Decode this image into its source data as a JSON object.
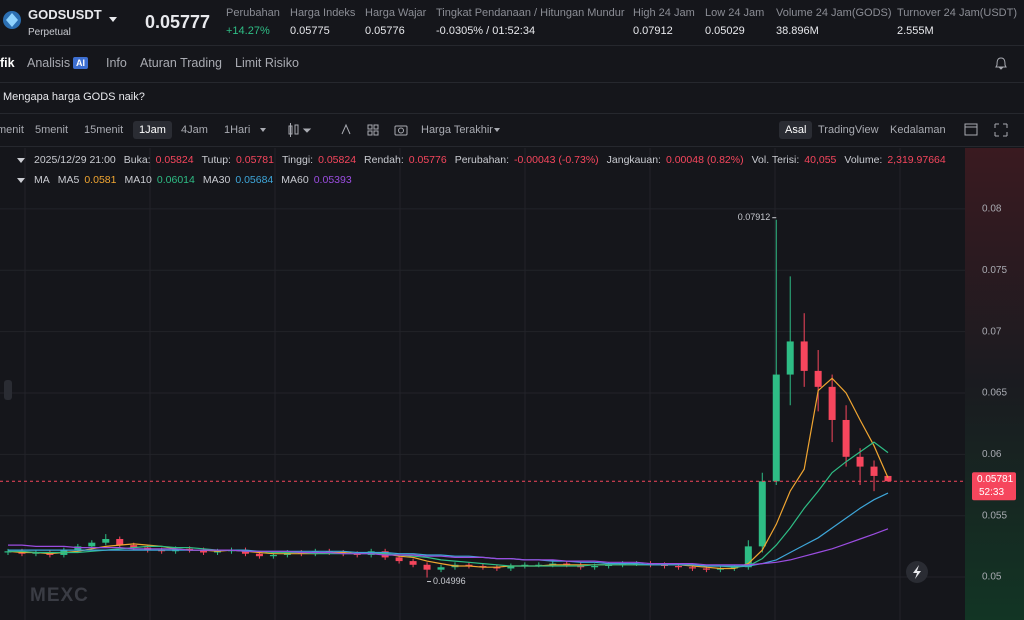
{
  "header": {
    "symbol": "GODSUSDT",
    "contract": "Perpetual",
    "price": "0.05777",
    "stats": [
      {
        "label": "Perubahan",
        "value": "+14.27%"
      },
      {
        "label": "Harga Indeks",
        "value": "0.05775"
      },
      {
        "label": "Harga Wajar",
        "value": "0.05776"
      },
      {
        "label": "Tingkat Pendanaan / Hitungan Mundur",
        "value": "-0.0305% / 01:52:34"
      },
      {
        "label": "High 24 Jam",
        "value": "0.07912"
      },
      {
        "label": "Low 24 Jam",
        "value": "0.05029"
      },
      {
        "label": "Volume 24 Jam(GODS)",
        "value": "38.896M"
      },
      {
        "label": "Turnover 24 Jam(USDT)",
        "value": "2.555M"
      }
    ]
  },
  "tabs": [
    "fik",
    "Analisis",
    "Info",
    "Aturan Trading",
    "Limit Risiko"
  ],
  "ai_badge": "AI",
  "notice": "Mengapa harga GODS naik?",
  "toolbar": {
    "intervals": [
      "menit",
      "5menit",
      "15menit",
      "1Jam",
      "4Jam",
      "1Hari"
    ],
    "price_type": "Harga Terakhir",
    "views": [
      "Asal",
      "TradingView",
      "Kedalaman"
    ]
  },
  "legend": {
    "time": "2025/12/29 21:00",
    "fields": [
      {
        "label": "Buka:",
        "value": "0.05824"
      },
      {
        "label": "Tutup:",
        "value": "0.05781"
      },
      {
        "label": "Tinggi:",
        "value": "0.05824"
      },
      {
        "label": "Rendah:",
        "value": "0.05776"
      },
      {
        "label": "Perubahan:",
        "value": "-0.00043 (-0.73%)"
      },
      {
        "label": "Jangkauan:",
        "value": "0.00048 (0.82%)"
      },
      {
        "label": "Vol. Terisi:",
        "value": "40,055"
      },
      {
        "label": "Volume:",
        "value": "2,319.97664"
      }
    ],
    "ma_title": "MA",
    "ma_values": [
      "0.0581",
      "0.06014",
      "0.05684",
      "0.05393"
    ]
  },
  "chart_data": {
    "type": "candlestick",
    "up_color": "#2ebd85",
    "down_color": "#f6465d",
    "ylim": [
      0.0465,
      0.0848
    ],
    "yticks": [
      0.08,
      0.075,
      0.07,
      0.065,
      0.06,
      0.055,
      0.05
    ],
    "open": [
      0.052,
      0.0521,
      0.0519,
      0.052,
      0.0518,
      0.0522,
      0.0525,
      0.0528,
      0.0531,
      0.0526,
      0.0524,
      0.0522,
      0.0521,
      0.0523,
      0.0522,
      0.052,
      0.0521,
      0.0522,
      0.0519,
      0.0517,
      0.0518,
      0.052,
      0.0519,
      0.0521,
      0.052,
      0.0519,
      0.0518,
      0.0521,
      0.0516,
      0.0513,
      0.051,
      0.0506,
      0.0508,
      0.051,
      0.0509,
      0.0508,
      0.0507,
      0.0509,
      0.051,
      0.051,
      0.0511,
      0.051,
      0.0508,
      0.0509,
      0.051,
      0.0511,
      0.0511,
      0.051,
      0.0509,
      0.0508,
      0.0507,
      0.0506,
      0.0507,
      0.0508,
      0.0525,
      0.0578,
      0.0665,
      0.0692,
      0.0668,
      0.0655,
      0.0628,
      0.0598,
      0.059,
      0.05824
    ],
    "high": [
      0.0523,
      0.0523,
      0.0522,
      0.0522,
      0.0524,
      0.0527,
      0.053,
      0.0535,
      0.0533,
      0.0528,
      0.0526,
      0.0524,
      0.0525,
      0.0525,
      0.0524,
      0.0523,
      0.0524,
      0.0524,
      0.0521,
      0.052,
      0.0522,
      0.0522,
      0.0523,
      0.0523,
      0.0522,
      0.0521,
      0.0523,
      0.0523,
      0.0518,
      0.0515,
      0.0512,
      0.051,
      0.0512,
      0.0512,
      0.0511,
      0.051,
      0.0511,
      0.0512,
      0.0512,
      0.0513,
      0.0513,
      0.0512,
      0.0511,
      0.0512,
      0.0513,
      0.0513,
      0.0513,
      0.0512,
      0.0511,
      0.051,
      0.0509,
      0.0509,
      0.051,
      0.053,
      0.0585,
      0.07912,
      0.0745,
      0.0715,
      0.0685,
      0.0665,
      0.064,
      0.0605,
      0.0595,
      0.05824
    ],
    "low": [
      0.0518,
      0.0517,
      0.0517,
      0.0516,
      0.0516,
      0.052,
      0.0523,
      0.0526,
      0.0524,
      0.0522,
      0.052,
      0.0519,
      0.0519,
      0.052,
      0.0518,
      0.0518,
      0.0519,
      0.0517,
      0.0515,
      0.0515,
      0.0516,
      0.0517,
      0.0517,
      0.0518,
      0.0517,
      0.0516,
      0.0516,
      0.0514,
      0.0511,
      0.0508,
      0.04996,
      0.0504,
      0.0506,
      0.0507,
      0.0506,
      0.0505,
      0.0505,
      0.0507,
      0.0508,
      0.0508,
      0.0508,
      0.0506,
      0.0506,
      0.0507,
      0.0508,
      0.0509,
      0.0508,
      0.0507,
      0.0506,
      0.0505,
      0.0504,
      0.0504,
      0.0505,
      0.0506,
      0.052,
      0.0575,
      0.064,
      0.0655,
      0.0635,
      0.061,
      0.059,
      0.0575,
      0.057,
      0.05776
    ],
    "close": [
      0.0521,
      0.0519,
      0.052,
      0.0518,
      0.0522,
      0.0525,
      0.0528,
      0.0531,
      0.0526,
      0.0524,
      0.0522,
      0.0521,
      0.0523,
      0.0522,
      0.052,
      0.0521,
      0.0522,
      0.0519,
      0.0517,
      0.0518,
      0.052,
      0.0519,
      0.0521,
      0.052,
      0.0519,
      0.0518,
      0.0521,
      0.0516,
      0.0513,
      0.051,
      0.0506,
      0.0508,
      0.051,
      0.0509,
      0.0508,
      0.0507,
      0.0509,
      0.051,
      0.051,
      0.0511,
      0.051,
      0.0508,
      0.0509,
      0.051,
      0.0511,
      0.0511,
      0.051,
      0.0509,
      0.0508,
      0.0507,
      0.0506,
      0.0507,
      0.0508,
      0.0525,
      0.0578,
      0.0665,
      0.0692,
      0.0668,
      0.0655,
      0.0628,
      0.0598,
      0.059,
      0.05824,
      0.05781
    ],
    "series": [
      {
        "name": "MA5",
        "color": "#f0a531",
        "values": [
          0.0521,
          0.052,
          0.052,
          0.0519,
          0.052,
          0.0521,
          0.0523,
          0.0525,
          0.0526,
          0.0527,
          0.0526,
          0.0525,
          0.0523,
          0.0522,
          0.0522,
          0.0521,
          0.0522,
          0.0521,
          0.052,
          0.0519,
          0.0519,
          0.0519,
          0.0519,
          0.052,
          0.052,
          0.0519,
          0.052,
          0.0519,
          0.0517,
          0.0516,
          0.0513,
          0.0511,
          0.0509,
          0.0509,
          0.0508,
          0.0508,
          0.0509,
          0.0509,
          0.0509,
          0.051,
          0.051,
          0.051,
          0.051,
          0.051,
          0.051,
          0.051,
          0.051,
          0.051,
          0.051,
          0.0509,
          0.0508,
          0.0507,
          0.0507,
          0.0511,
          0.0522,
          0.0543,
          0.057,
          0.0588,
          0.0652,
          0.0662,
          0.065,
          0.0628,
          0.0607,
          0.0581
        ]
      },
      {
        "name": "MA10",
        "color": "#2ebd85",
        "values": [
          0.0521,
          0.0521,
          0.052,
          0.052,
          0.052,
          0.052,
          0.0521,
          0.0522,
          0.0523,
          0.0524,
          0.0525,
          0.0525,
          0.0524,
          0.0524,
          0.0523,
          0.0522,
          0.0522,
          0.0521,
          0.0521,
          0.052,
          0.052,
          0.052,
          0.0519,
          0.0519,
          0.0519,
          0.0519,
          0.0519,
          0.0519,
          0.0518,
          0.0517,
          0.0516,
          0.0514,
          0.0513,
          0.0512,
          0.0511,
          0.051,
          0.0509,
          0.0509,
          0.0509,
          0.0509,
          0.0509,
          0.0509,
          0.051,
          0.051,
          0.051,
          0.051,
          0.051,
          0.051,
          0.051,
          0.051,
          0.0509,
          0.0509,
          0.0508,
          0.0509,
          0.0515,
          0.0526,
          0.054,
          0.0556,
          0.057,
          0.0585,
          0.0594,
          0.0602,
          0.061,
          0.06014
        ]
      },
      {
        "name": "MA30",
        "color": "#3ea6d9",
        "values": [
          0.0522,
          0.0522,
          0.0522,
          0.0522,
          0.0522,
          0.0522,
          0.0522,
          0.0522,
          0.0522,
          0.0522,
          0.0522,
          0.0522,
          0.0522,
          0.0522,
          0.0522,
          0.0522,
          0.0522,
          0.0522,
          0.0521,
          0.0521,
          0.0521,
          0.0521,
          0.0521,
          0.0521,
          0.0521,
          0.052,
          0.052,
          0.052,
          0.0519,
          0.0519,
          0.0518,
          0.0518,
          0.0517,
          0.0517,
          0.0516,
          0.0515,
          0.0515,
          0.0514,
          0.0514,
          0.0513,
          0.0513,
          0.0512,
          0.0512,
          0.0511,
          0.0511,
          0.0511,
          0.051,
          0.051,
          0.051,
          0.051,
          0.0509,
          0.0509,
          0.0509,
          0.0509,
          0.0511,
          0.0514,
          0.052,
          0.0526,
          0.0532,
          0.054,
          0.0548,
          0.0556,
          0.0563,
          0.05684
        ]
      },
      {
        "name": "MA60",
        "color": "#9b4de0",
        "values": [
          0.0526,
          0.0526,
          0.0525,
          0.0525,
          0.0525,
          0.0524,
          0.0524,
          0.0524,
          0.0524,
          0.0523,
          0.0523,
          0.0523,
          0.0523,
          0.0522,
          0.0522,
          0.0522,
          0.0522,
          0.0521,
          0.0521,
          0.0521,
          0.0521,
          0.052,
          0.052,
          0.052,
          0.0519,
          0.0519,
          0.0519,
          0.0518,
          0.0518,
          0.0518,
          0.0517,
          0.0517,
          0.0516,
          0.0516,
          0.0516,
          0.0515,
          0.0515,
          0.0514,
          0.0514,
          0.0514,
          0.0513,
          0.0513,
          0.0513,
          0.0512,
          0.0512,
          0.0512,
          0.0511,
          0.0511,
          0.0511,
          0.0511,
          0.051,
          0.051,
          0.051,
          0.051,
          0.0511,
          0.0512,
          0.0514,
          0.0517,
          0.052,
          0.0523,
          0.0527,
          0.0531,
          0.0535,
          0.05393
        ]
      }
    ],
    "high_label": "0.07912",
    "low_label": "0.04996",
    "last_price_label": "0.05781",
    "countdown": "52:33",
    "watermark": "MEXC"
  }
}
